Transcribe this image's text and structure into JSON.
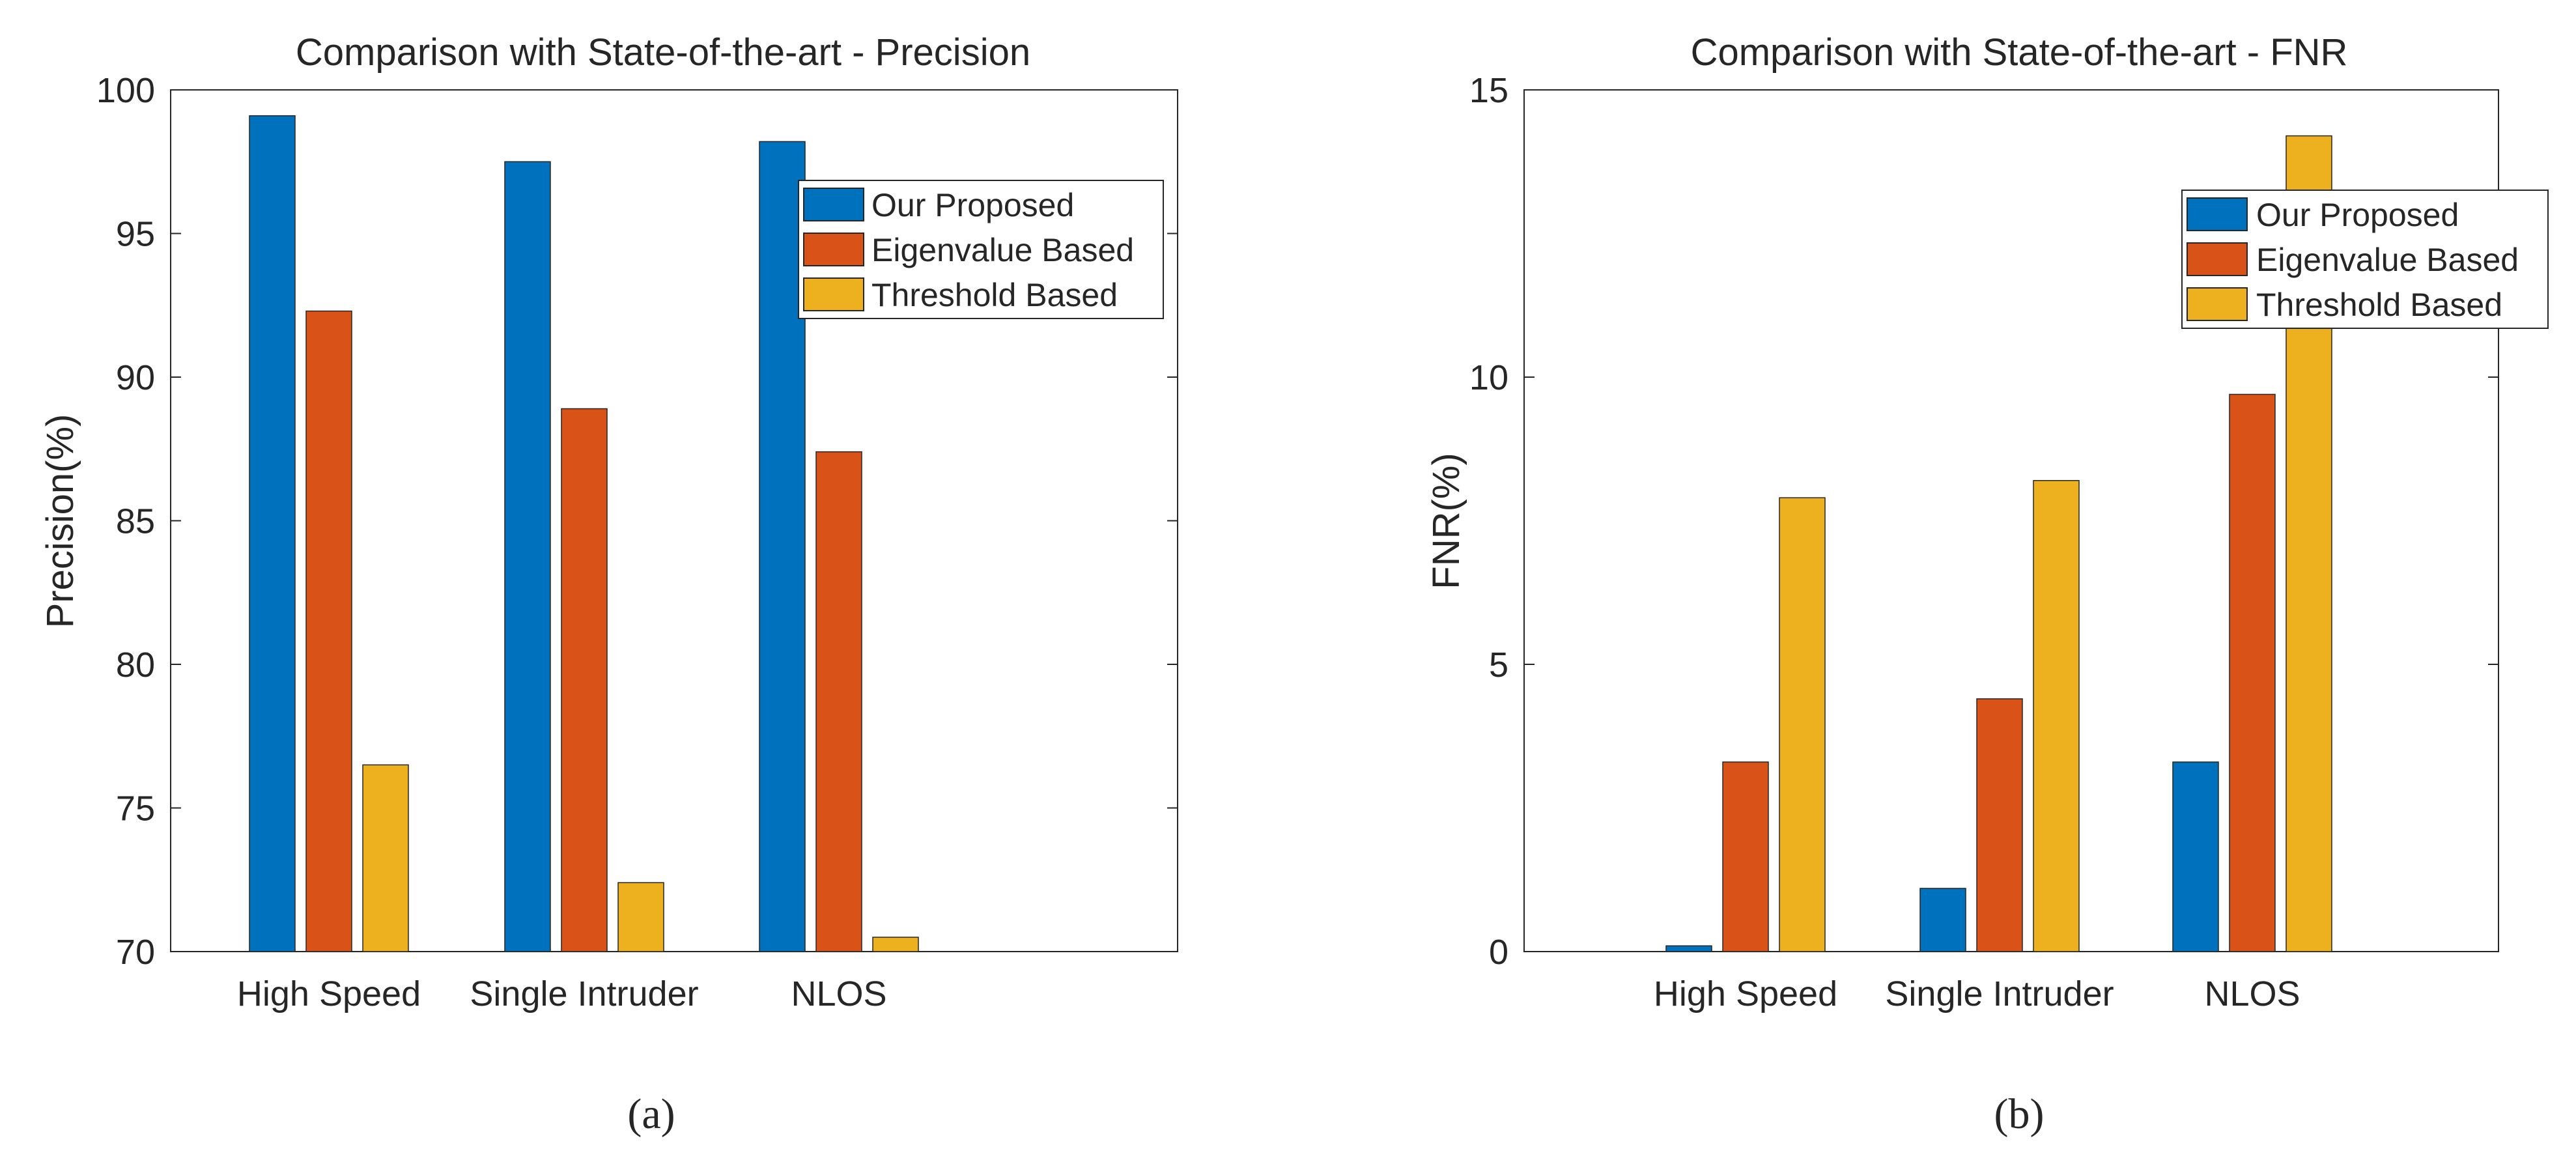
{
  "chart_data": [
    {
      "id": "a",
      "type": "bar",
      "title": "Comparison with State-of-the-art  - Precision",
      "xlabel": "",
      "ylabel": "Precision(%)",
      "ylim": [
        70,
        100
      ],
      "yticks": [
        70,
        75,
        80,
        85,
        90,
        95,
        100
      ],
      "categories": [
        "High Speed",
        "Single Intruder",
        "NLOS"
      ],
      "series": [
        {
          "name": "Our Proposed",
          "color": "#0072BD",
          "values": [
            99.1,
            97.5,
            98.2
          ]
        },
        {
          "name": "Eigenvalue Based",
          "color": "#D95319",
          "values": [
            92.3,
            88.9,
            87.4
          ]
        },
        {
          "name": "Threshold Based",
          "color": "#EDB120",
          "values": [
            76.5,
            72.4,
            70.5
          ]
        }
      ],
      "legend_position": "top-right",
      "grid": false
    },
    {
      "id": "b",
      "type": "bar",
      "title": "Comparison with State-of-the-art  - FNR",
      "xlabel": "",
      "ylabel": "FNR(%)",
      "ylim": [
        0,
        15
      ],
      "yticks": [
        0,
        5,
        10,
        15
      ],
      "categories": [
        "High Speed",
        "Single Intruder",
        "NLOS"
      ],
      "series": [
        {
          "name": "Our Proposed",
          "color": "#0072BD",
          "values": [
            0.1,
            1.1,
            3.3
          ]
        },
        {
          "name": "Eigenvalue Based",
          "color": "#D95319",
          "values": [
            3.3,
            4.4,
            9.7
          ]
        },
        {
          "name": "Threshold Based",
          "color": "#EDB120",
          "values": [
            7.9,
            8.2,
            14.2
          ]
        }
      ],
      "legend_position": "top-right",
      "grid": false
    }
  ],
  "subfigure_labels": [
    "(a)",
    "(b)"
  ]
}
